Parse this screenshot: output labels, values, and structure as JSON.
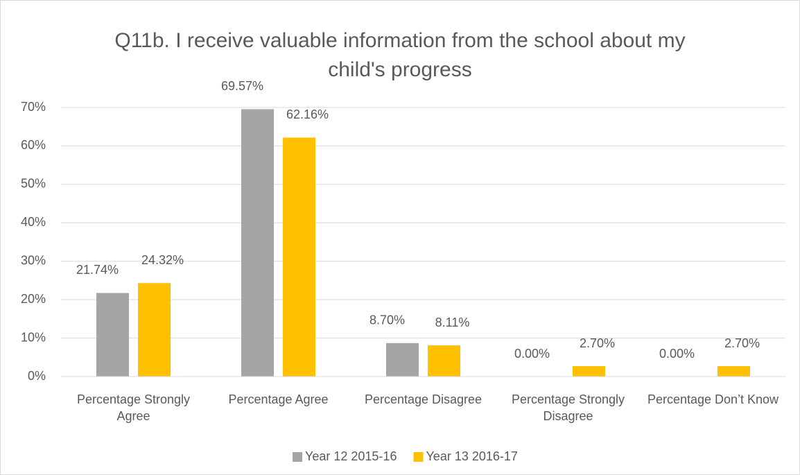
{
  "chart_data": {
    "type": "bar",
    "title": "Q11b. I receive valuable information from the school about my child's progress",
    "categories": [
      "Percentage Strongly Agree",
      "Percentage Agree",
      "Percentage Disagree",
      "Percentage Strongly Disagree",
      "Percentage Don’t Know"
    ],
    "series": [
      {
        "name": "Year 12 2015-16",
        "color": "#a5a5a5",
        "values": [
          21.74,
          69.57,
          8.7,
          0,
          0
        ],
        "value_labels": [
          "21.74%",
          "69.57%",
          "8.70%",
          "0.00%",
          "0.00%"
        ]
      },
      {
        "name": "Year 13 2016-17",
        "color": "#ffc000",
        "values": [
          24.32,
          62.16,
          8.11,
          2.7,
          2.7
        ],
        "value_labels": [
          "24.32%",
          "62.16%",
          "8.11%",
          "2.70%",
          "2.70%"
        ]
      }
    ],
    "ylim": [
      0,
      70
    ],
    "yticks": [
      {
        "value": 0,
        "label": "0%"
      },
      {
        "value": 10,
        "label": "10%"
      },
      {
        "value": 20,
        "label": "20%"
      },
      {
        "value": 30,
        "label": "30%"
      },
      {
        "value": 40,
        "label": "40%"
      },
      {
        "value": 50,
        "label": "50%"
      },
      {
        "value": 60,
        "label": "60%"
      },
      {
        "value": 70,
        "label": "70%"
      }
    ],
    "grid": true,
    "legend": "bottom"
  }
}
